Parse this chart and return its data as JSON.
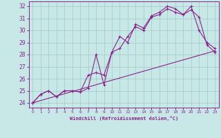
{
  "xlabel": "Windchill (Refroidissement éolien,°C)",
  "xlim": [
    -0.5,
    23.5
  ],
  "ylim": [
    23.6,
    32.4
  ],
  "xticks": [
    0,
    1,
    2,
    3,
    4,
    5,
    6,
    7,
    8,
    9,
    10,
    11,
    12,
    13,
    14,
    15,
    16,
    17,
    18,
    19,
    20,
    21,
    22,
    23
  ],
  "yticks": [
    24,
    25,
    26,
    27,
    28,
    29,
    30,
    31,
    32
  ],
  "bg_color": "#c8e8e8",
  "line_color": "#882288",
  "grid_color": "#a0c8c8",
  "line1_x": [
    0,
    1,
    2,
    3,
    4,
    5,
    6,
    7,
    8,
    9,
    10,
    11,
    12,
    13,
    14,
    15,
    16,
    17,
    18,
    19,
    20,
    21,
    22,
    23
  ],
  "line1_y": [
    24.0,
    24.7,
    25.0,
    24.5,
    25.0,
    25.0,
    24.9,
    26.3,
    26.5,
    26.3,
    28.2,
    29.5,
    29.0,
    30.5,
    30.2,
    31.2,
    31.5,
    32.0,
    31.8,
    31.3,
    32.0,
    30.0,
    29.0,
    28.5
  ],
  "line2_x": [
    0,
    1,
    2,
    3,
    4,
    5,
    6,
    7,
    8,
    9,
    10,
    11,
    12,
    13,
    14,
    15,
    16,
    17,
    18,
    19,
    20,
    21,
    22,
    23
  ],
  "line2_y": [
    24.0,
    24.7,
    25.0,
    24.5,
    25.0,
    25.0,
    24.9,
    25.2,
    28.0,
    25.5,
    28.2,
    28.5,
    29.5,
    30.3,
    30.0,
    31.1,
    31.3,
    31.8,
    31.5,
    31.3,
    31.7,
    31.1,
    28.8,
    28.2
  ],
  "line3_x": [
    0,
    23
  ],
  "line3_y": [
    24.0,
    28.3
  ]
}
